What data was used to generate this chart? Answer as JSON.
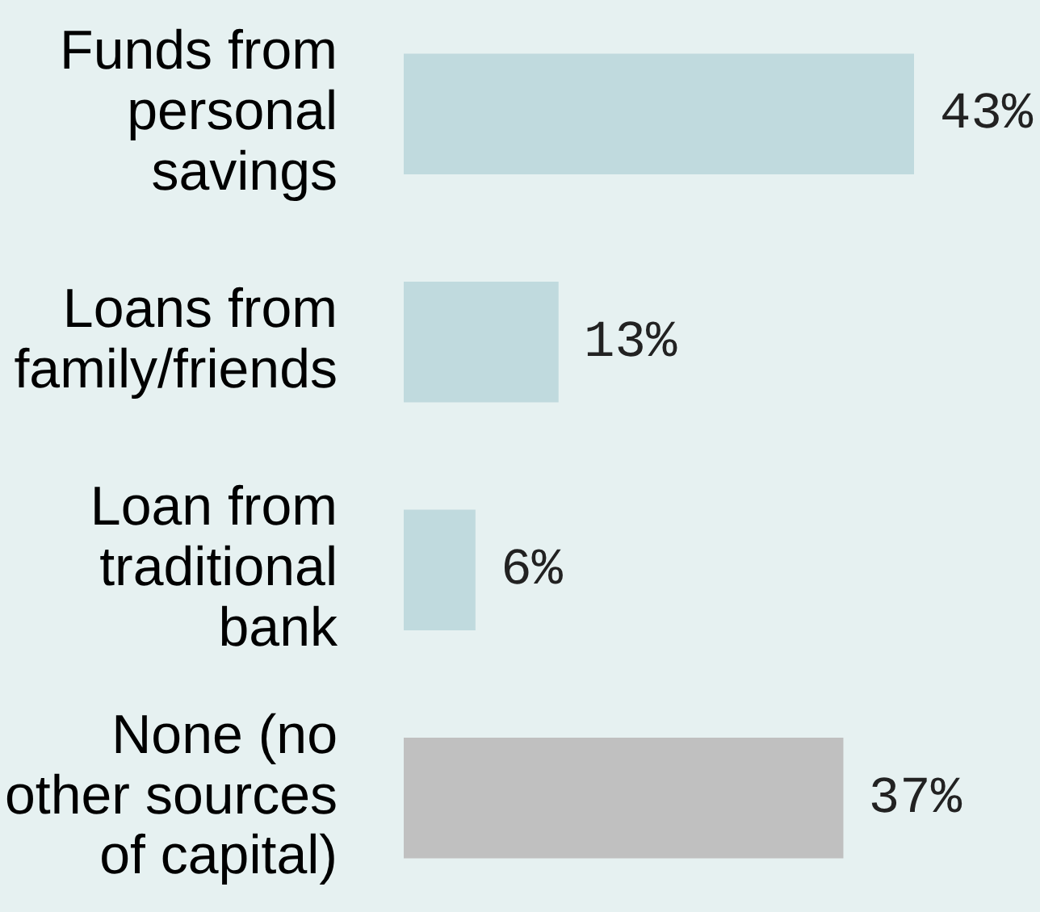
{
  "chart_data": {
    "type": "bar",
    "orientation": "horizontal",
    "categories": [
      "Funds from personal savings",
      "Loans from family/friends",
      "Loan from traditional bank",
      "None (no other sources of capital)"
    ],
    "values": [
      43,
      13,
      6,
      37
    ],
    "colors": [
      "#c0dade",
      "#c0dade",
      "#c0dade",
      "#c0c0c0"
    ],
    "value_labels": [
      "43%",
      "13%",
      "6%",
      "37%"
    ],
    "legend": false
  }
}
